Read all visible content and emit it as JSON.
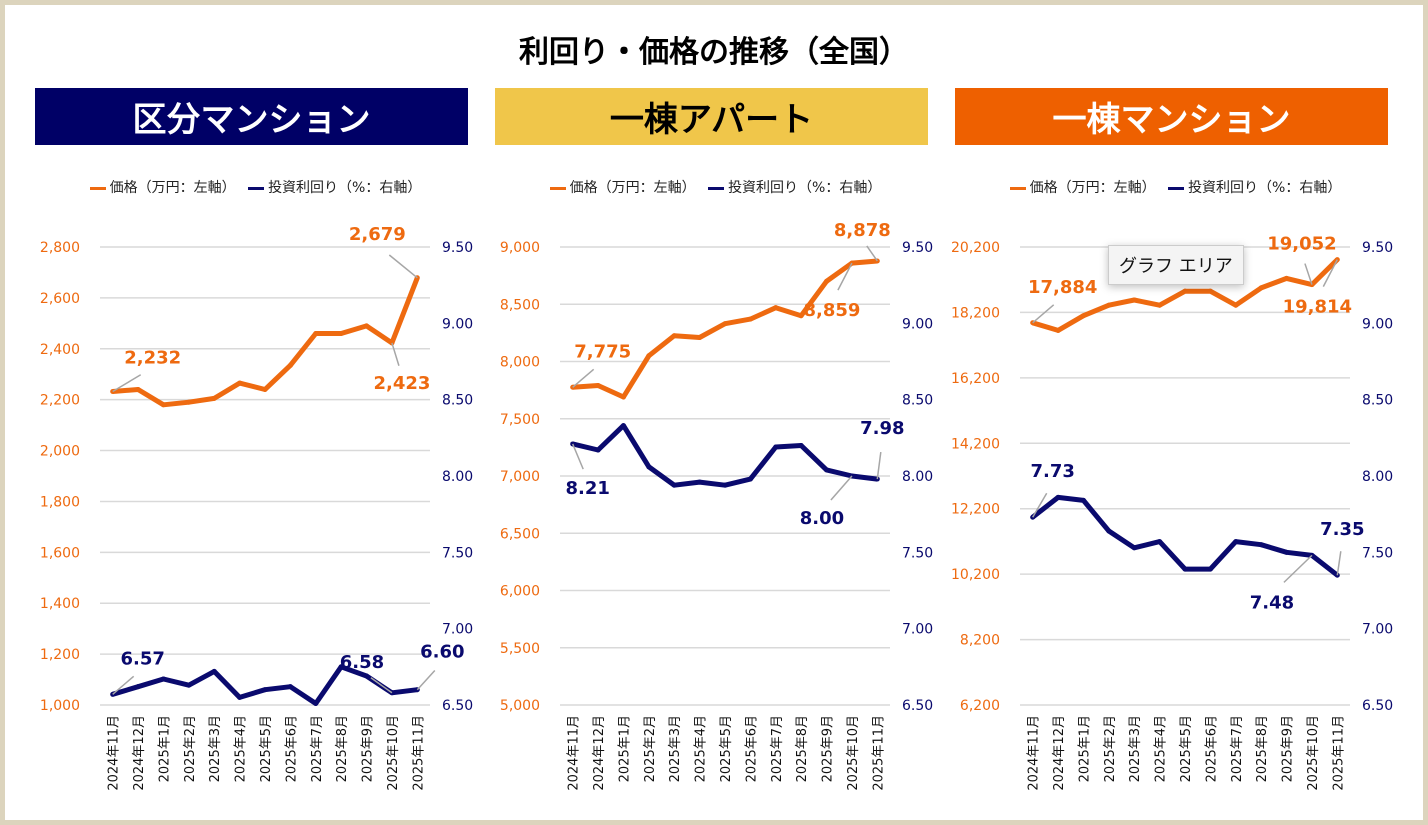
{
  "title": "利回り・価格の推移（全国）",
  "tooltip": "グラフ エリア",
  "colors": {
    "price": "#ee6a10",
    "yield": "#0a0a6e",
    "grid": "#d9d9d9",
    "leader": "#a6a6a6"
  },
  "chart_data": [
    {
      "type": "line",
      "header": "区分マンション",
      "header_bg": "#000066",
      "header_fg": "#ffffff",
      "legend": [
        "価格（万円：左軸）",
        "投資利回り（%：右軸）"
      ],
      "categories": [
        "2024年11月",
        "2024年12月",
        "2025年1月",
        "2025年2月",
        "2025年3月",
        "2025年4月",
        "2025年5月",
        "2025年6月",
        "2025年7月",
        "2025年8月",
        "2025年9月",
        "2025年10月",
        "2025年11月"
      ],
      "left_axis": {
        "min": 1000,
        "max": 2800,
        "ticks": [
          "1,000",
          "1,200",
          "1,400",
          "1,600",
          "1,800",
          "2,000",
          "2,200",
          "2,400",
          "2,600",
          "2,800"
        ]
      },
      "right_axis": {
        "min": 6.5,
        "max": 9.5,
        "ticks": [
          "6.50",
          "7.00",
          "7.50",
          "8.00",
          "8.50",
          "9.00",
          "9.50"
        ]
      },
      "grid": true,
      "series": [
        {
          "name": "価格（万円：左軸）",
          "axis": "left",
          "values": [
            2232,
            2240,
            2180,
            2190,
            2205,
            2265,
            2240,
            2335,
            2460,
            2460,
            2490,
            2423,
            2679
          ]
        },
        {
          "name": "投資利回り（%：右軸）",
          "axis": "right",
          "values": [
            6.57,
            6.62,
            6.67,
            6.63,
            6.72,
            6.55,
            6.6,
            6.62,
            6.51,
            6.75,
            6.69,
            6.58,
            6.6
          ]
        }
      ],
      "labels": [
        {
          "series": 0,
          "index": 0,
          "text": "2,232"
        },
        {
          "series": 0,
          "index": 11,
          "text": "2,423"
        },
        {
          "series": 0,
          "index": 12,
          "text": "2,679"
        },
        {
          "series": 1,
          "index": 0,
          "text": "6.57"
        },
        {
          "series": 1,
          "index": 11,
          "text": "6.58"
        },
        {
          "series": 1,
          "index": 12,
          "text": "6.60"
        }
      ]
    },
    {
      "type": "line",
      "header": "一棟アパート",
      "header_bg": "#f0c64a",
      "header_fg": "#000000",
      "legend": [
        "価格（万円：左軸）",
        "投資利回り（%：右軸）"
      ],
      "categories": [
        "2024年11月",
        "2024年12月",
        "2025年1月",
        "2025年2月",
        "2025年3月",
        "2025年4月",
        "2025年5月",
        "2025年6月",
        "2025年7月",
        "2025年8月",
        "2025年9月",
        "2025年10月",
        "2025年11月"
      ],
      "left_axis": {
        "min": 5000,
        "max": 9000,
        "ticks": [
          "5,000",
          "5,500",
          "6,000",
          "6,500",
          "7,000",
          "7,500",
          "8,000",
          "8,500",
          "9,000"
        ]
      },
      "right_axis": {
        "min": 6.5,
        "max": 9.5,
        "ticks": [
          "6.50",
          "7.00",
          "7.50",
          "8.00",
          "8.50",
          "9.00",
          "9.50"
        ]
      },
      "grid": true,
      "series": [
        {
          "name": "価格（万円：左軸）",
          "axis": "left",
          "values": [
            7775,
            7790,
            7690,
            8050,
            8225,
            8210,
            8330,
            8370,
            8470,
            8400,
            8700,
            8859,
            8878
          ]
        },
        {
          "name": "投資利回り（%：右軸）",
          "axis": "right",
          "values": [
            8.21,
            8.17,
            8.33,
            8.06,
            7.94,
            7.96,
            7.94,
            7.98,
            8.19,
            8.2,
            8.04,
            8.0,
            7.98
          ]
        }
      ],
      "labels": [
        {
          "series": 0,
          "index": 0,
          "text": "7,775"
        },
        {
          "series": 0,
          "index": 11,
          "text": "8,859"
        },
        {
          "series": 0,
          "index": 12,
          "text": "8,878"
        },
        {
          "series": 1,
          "index": 0,
          "text": "8.21"
        },
        {
          "series": 1,
          "index": 11,
          "text": "8.00"
        },
        {
          "series": 1,
          "index": 12,
          "text": "7.98"
        }
      ]
    },
    {
      "type": "line",
      "header": "一棟マンション",
      "header_bg": "#ee6000",
      "header_fg": "#ffffff",
      "legend": [
        "価格（万円：左軸）",
        "投資利回り（%：右軸）"
      ],
      "categories": [
        "2024年11月",
        "2024年12月",
        "2025年1月",
        "2025年2月",
        "2025年3月",
        "2025年4月",
        "2025年5月",
        "2025年6月",
        "2025年7月",
        "2025年8月",
        "2025年9月",
        "2025年10月",
        "2025年11月"
      ],
      "left_axis": {
        "min": 6200,
        "max": 20200,
        "ticks": [
          "6,200",
          "8,200",
          "10,200",
          "12,200",
          "14,200",
          "16,200",
          "18,200",
          "20,200"
        ]
      },
      "right_axis": {
        "min": 6.5,
        "max": 9.5,
        "ticks": [
          "6.50",
          "7.00",
          "7.50",
          "8.00",
          "8.50",
          "9.00",
          "9.50"
        ]
      },
      "grid": true,
      "series": [
        {
          "name": "価格（万円：左軸）",
          "axis": "left",
          "values": [
            17884,
            17650,
            18100,
            18420,
            18580,
            18420,
            18850,
            18850,
            18420,
            18950,
            19240,
            19052,
            19814
          ]
        },
        {
          "name": "投資利回り（%：右軸）",
          "axis": "right",
          "values": [
            7.73,
            7.86,
            7.84,
            7.64,
            7.53,
            7.57,
            7.39,
            7.39,
            7.57,
            7.55,
            7.5,
            7.48,
            7.35
          ]
        }
      ],
      "labels": [
        {
          "series": 0,
          "index": 0,
          "text": "17,884"
        },
        {
          "series": 0,
          "index": 11,
          "text": "19,052"
        },
        {
          "series": 0,
          "index": 12,
          "text": "19,814"
        },
        {
          "series": 1,
          "index": 0,
          "text": "7.73"
        },
        {
          "series": 1,
          "index": 11,
          "text": "7.48"
        },
        {
          "series": 1,
          "index": 12,
          "text": "7.35"
        }
      ]
    }
  ]
}
